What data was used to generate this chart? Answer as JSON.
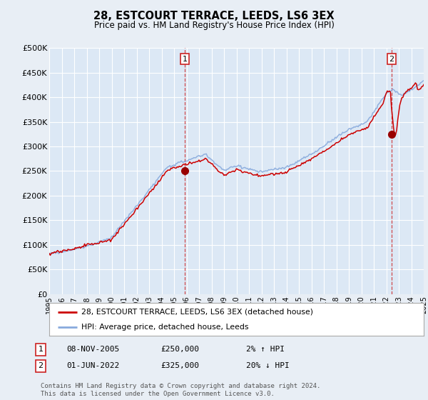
{
  "title": "28, ESTCOURT TERRACE, LEEDS, LS6 3EX",
  "subtitle": "Price paid vs. HM Land Registry's House Price Index (HPI)",
  "bg_color": "#e8eef5",
  "plot_bg": "#dce8f5",
  "legend_line1": "28, ESTCOURT TERRACE, LEEDS, LS6 3EX (detached house)",
  "legend_line2": "HPI: Average price, detached house, Leeds",
  "annotation1_date": "08-NOV-2005",
  "annotation1_price": "£250,000",
  "annotation1_hpi": "2% ↑ HPI",
  "annotation2_date": "01-JUN-2022",
  "annotation2_price": "£325,000",
  "annotation2_hpi": "20% ↓ HPI",
  "footer": "Contains HM Land Registry data © Crown copyright and database right 2024.\nThis data is licensed under the Open Government Licence v3.0.",
  "ylim": [
    0,
    500000
  ],
  "yticks": [
    0,
    50000,
    100000,
    150000,
    200000,
    250000,
    300000,
    350000,
    400000,
    450000,
    500000
  ],
  "ytick_labels": [
    "£0",
    "£50K",
    "£100K",
    "£150K",
    "£200K",
    "£250K",
    "£300K",
    "£350K",
    "£400K",
    "£450K",
    "£500K"
  ],
  "hpi_color": "#88aadd",
  "price_color": "#cc0000",
  "marker_color": "#990000",
  "sale1_x": 2005.85,
  "sale1_y": 250000,
  "sale2_x": 2022.42,
  "sale2_y": 325000,
  "xmin": 1995,
  "xmax": 2025
}
